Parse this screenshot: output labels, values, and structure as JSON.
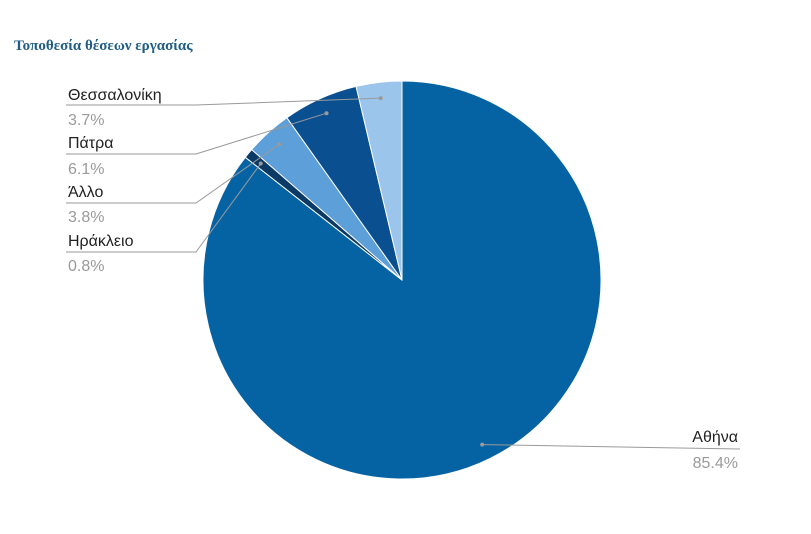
{
  "title": "Τοποθεσία θέσεων εργασίας",
  "chart_data": {
    "type": "pie",
    "title": "Τοποθεσία θέσεων εργασίας",
    "start_angle_deg": 0,
    "direction": "clockwise",
    "legend": "none",
    "slices": [
      {
        "label": "Αθήνα",
        "value": 85.4,
        "value_label": "85.4%",
        "color": "#0563a4"
      },
      {
        "label": "Ηράκλειο",
        "value": 0.8,
        "value_label": "0.8%",
        "color": "#0b3a66"
      },
      {
        "label": "Άλλο",
        "value": 3.8,
        "value_label": "3.8%",
        "color": "#5d9fd8"
      },
      {
        "label": "Πάτρα",
        "value": 6.1,
        "value_label": "6.1%",
        "color": "#0a5091"
      },
      {
        "label": "Θεσσαλονίκη",
        "value": 3.7,
        "value_label": "3.7%",
        "color": "#9bc5ea"
      }
    ]
  }
}
